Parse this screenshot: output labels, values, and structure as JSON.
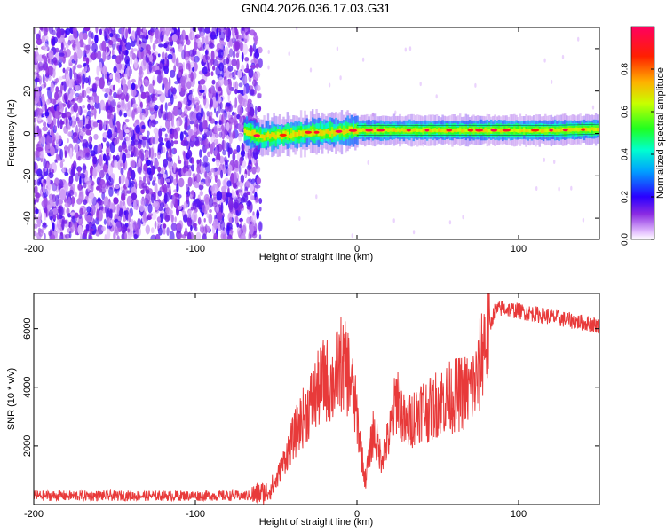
{
  "figure": {
    "title": "GN04.2026.036.17.03.G31"
  },
  "colors": {
    "snr_line": "#e83a3a",
    "axes": "#000000",
    "background": "#ffffff"
  },
  "chart_data": [
    {
      "type": "heatmap",
      "xlabel": "Height of straight line (km)",
      "ylabel": "Frequency (Hz)",
      "xlim": [
        -200,
        150
      ],
      "ylim": [
        -50,
        50
      ],
      "x_ticks": [
        -200,
        -100,
        0,
        100
      ],
      "x_tick_labels": [
        "-200",
        "-100",
        "0",
        "100"
      ],
      "y_ticks": [
        -40,
        -20,
        0,
        20,
        40
      ],
      "y_tick_labels": [
        "-40",
        "-20",
        "0",
        "20",
        "40"
      ],
      "colorbar": {
        "label": "Normalized spectral amplitude",
        "range": [
          0,
          1
        ],
        "ticks": [
          0,
          0.2,
          0.4,
          0.6,
          0.8
        ],
        "tick_labels": [
          "0.0",
          "0.2",
          "0.4",
          "0.6",
          "0.8"
        ],
        "colormap": "rainbow (white-violet-blue-cyan-green-yellow-red-magenta)"
      },
      "features": {
        "noise_region_x": [
          -200,
          -63
        ],
        "noise_level": 0.1,
        "signal_start_x": -70,
        "signal_frequency_track": [
          [
            -68,
            0.5
          ],
          [
            -60,
            -1.5
          ],
          [
            -50,
            -1.0
          ],
          [
            -40,
            -0.5
          ],
          [
            -30,
            0.5
          ],
          [
            -20,
            0.5
          ],
          [
            -10,
            1.0
          ],
          [
            0,
            1.5
          ],
          [
            20,
            1.5
          ],
          [
            40,
            1.5
          ],
          [
            60,
            1.5
          ],
          [
            80,
            1.5
          ],
          [
            100,
            1.5
          ],
          [
            120,
            1.5
          ],
          [
            150,
            2.0
          ]
        ],
        "signal_peak_amplitude": 1.0
      }
    },
    {
      "type": "line",
      "xlabel": "Height of straight line (km)",
      "ylabel": "SNR (10 * v/v)",
      "xlim": [
        -200,
        150
      ],
      "ylim": [
        0,
        7200
      ],
      "x_ticks": [
        -200,
        -100,
        0,
        100
      ],
      "x_tick_labels": [
        "-200",
        "-100",
        "0",
        "100"
      ],
      "y_ticks": [
        2000,
        4000,
        6000
      ],
      "y_tick_labels": [
        "2000",
        "4000",
        "6000"
      ],
      "series": [
        {
          "color": "#e83a3a",
          "envelope_x": [
            -200,
            -65,
            -55,
            -50,
            -45,
            -40,
            -35,
            -30,
            -25,
            -20,
            -15,
            -10,
            -5,
            0,
            5,
            10,
            15,
            20,
            25,
            30,
            35,
            40,
            45,
            50,
            55,
            60,
            65,
            70,
            75,
            78,
            82,
            85,
            90,
            100,
            110,
            120,
            130,
            140,
            150
          ],
          "envelope_y": [
            300,
            300,
            450,
            800,
            1500,
            2200,
            2800,
            3300,
            3800,
            4300,
            4100,
            4800,
            4500,
            3000,
            800,
            2500,
            1600,
            2300,
            3800,
            2600,
            3000,
            3300,
            3200,
            3500,
            3600,
            3700,
            3800,
            3900,
            4300,
            5500,
            6000,
            6600,
            6700,
            6600,
            6500,
            6400,
            6300,
            6200,
            6100
          ],
          "noise_amplitude": 180
        }
      ]
    }
  ]
}
